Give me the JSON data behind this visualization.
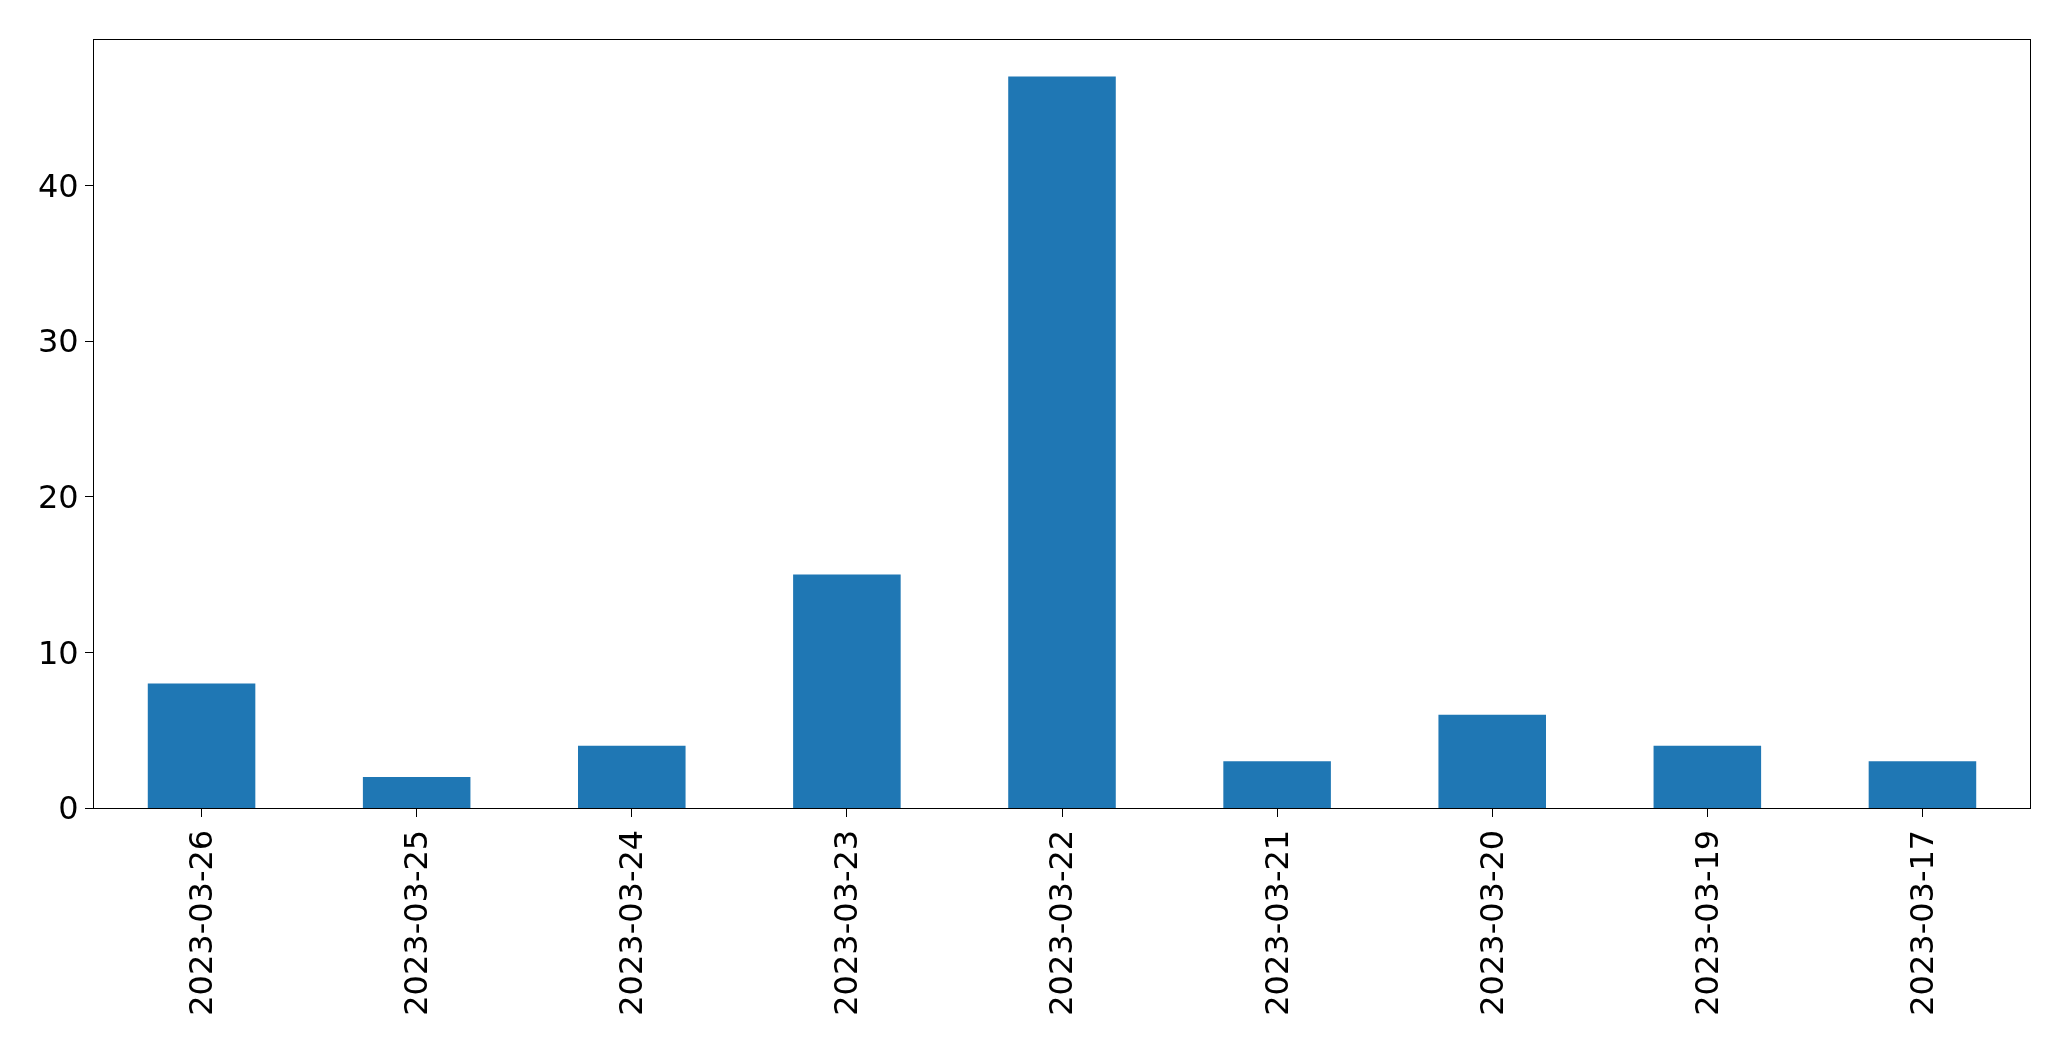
{
  "chart_data": {
    "type": "bar",
    "categories": [
      "2023-03-26",
      "2023-03-25",
      "2023-03-24",
      "2023-03-23",
      "2023-03-22",
      "2023-03-21",
      "2023-03-20",
      "2023-03-19",
      "2023-03-17"
    ],
    "values": [
      8,
      2,
      4,
      15,
      47,
      3,
      6,
      4,
      3
    ],
    "color": "#1f77b4",
    "ylim": [
      0,
      49.35
    ],
    "yticks": [
      0,
      10,
      20,
      30,
      40
    ],
    "grid": false
  }
}
